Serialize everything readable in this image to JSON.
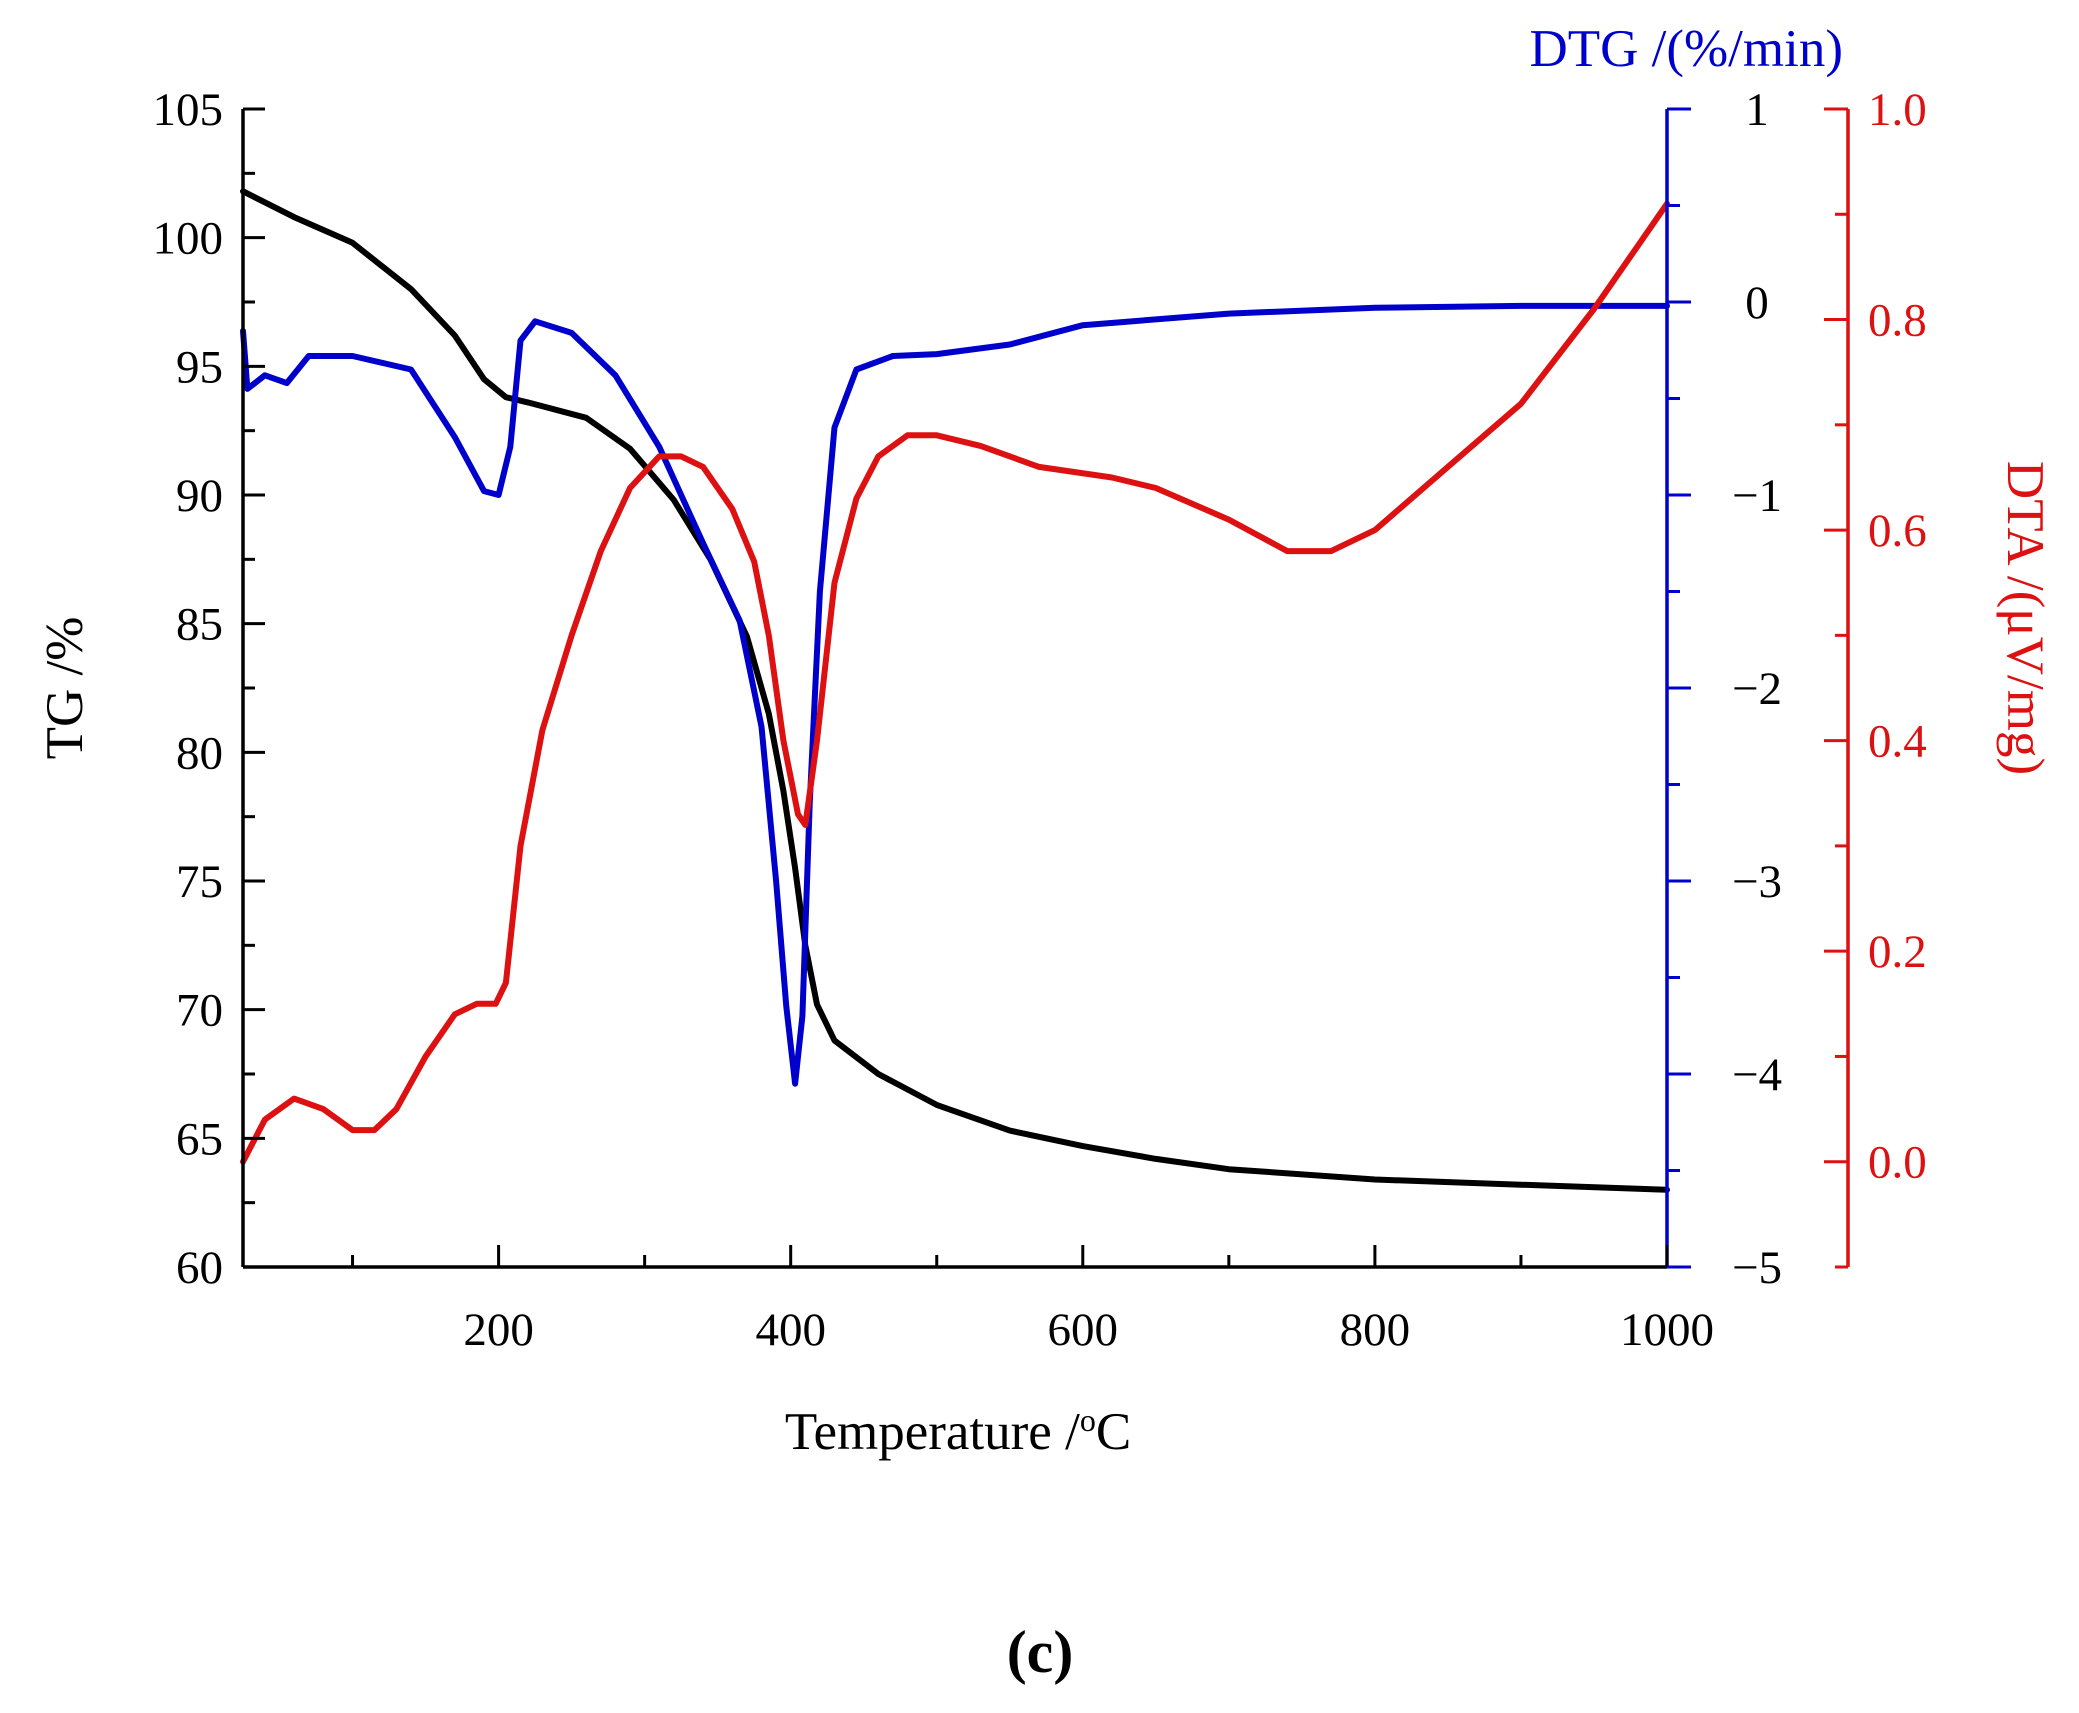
{
  "chart_data": {
    "type": "line",
    "panel_label": "(c)",
    "xlabel": "Temperature /°C",
    "xlabel_parts": {
      "text": "Temperature /",
      "sup": "o",
      "unit": "C"
    },
    "xlim": [
      25,
      1000
    ],
    "xticks": [
      200,
      400,
      600,
      800,
      1000
    ],
    "axes": {
      "tg": {
        "label": "TG /%",
        "ylim": [
          60,
          105
        ],
        "ticks": [
          60,
          65,
          70,
          75,
          80,
          85,
          90,
          95,
          100,
          105
        ],
        "color": "#000000"
      },
      "dtg": {
        "label": "DTG /(%/min)",
        "ylim": [
          -5,
          1
        ],
        "ticks": [
          1,
          0,
          -1,
          -2,
          -3,
          -4,
          -5
        ],
        "tick_labels": [
          "1",
          "0",
          "−1",
          "−2",
          "−3",
          "−4",
          "−5"
        ],
        "color": "#0000cc"
      },
      "dta": {
        "label": "DTA /(μV/mg)",
        "ylim": [
          -0.1,
          1.0
        ],
        "ticks": [
          1.0,
          0.8,
          0.6,
          0.4,
          0.2,
          0.0
        ],
        "tick_labels": [
          "1.0",
          "0.8",
          "0.6",
          "0.4",
          "0.2",
          "0.0"
        ],
        "color": "#dd1111"
      }
    },
    "series": [
      {
        "name": "TG",
        "axis": "tg",
        "color": "#000000",
        "x": [
          25,
          60,
          100,
          140,
          170,
          190,
          205,
          220,
          260,
          290,
          320,
          345,
          370,
          385,
          395,
          403,
          410,
          418,
          430,
          460,
          500,
          550,
          600,
          650,
          700,
          800,
          900,
          1000
        ],
        "y": [
          101.8,
          100.8,
          99.8,
          98.0,
          96.2,
          94.5,
          93.8,
          93.6,
          93.0,
          91.8,
          89.8,
          87.5,
          84.5,
          81.5,
          78.5,
          75.5,
          72.5,
          70.2,
          68.8,
          67.5,
          66.3,
          65.3,
          64.7,
          64.2,
          63.8,
          63.4,
          63.2,
          63.0
        ]
      },
      {
        "name": "DTG",
        "axis": "dtg",
        "color": "#0000cc",
        "x": [
          25,
          28,
          40,
          55,
          70,
          100,
          140,
          170,
          190,
          200,
          208,
          215,
          225,
          250,
          280,
          310,
          340,
          365,
          380,
          390,
          397,
          403,
          408,
          413,
          420,
          430,
          445,
          470,
          500,
          550,
          600,
          700,
          800,
          900,
          1000
        ],
        "y": [
          -0.15,
          -0.45,
          -0.38,
          -0.42,
          -0.28,
          -0.28,
          -0.35,
          -0.7,
          -0.98,
          -1.0,
          -0.75,
          -0.2,
          -0.1,
          -0.16,
          -0.38,
          -0.75,
          -1.25,
          -1.65,
          -2.2,
          -3.0,
          -3.65,
          -4.05,
          -3.7,
          -2.6,
          -1.5,
          -0.65,
          -0.35,
          -0.28,
          -0.27,
          -0.22,
          -0.12,
          -0.06,
          -0.03,
          -0.02,
          -0.02
        ]
      },
      {
        "name": "DTA",
        "axis": "dta",
        "color": "#dd1111",
        "x": [
          25,
          40,
          60,
          80,
          100,
          115,
          130,
          150,
          170,
          185,
          198,
          205,
          215,
          230,
          250,
          270,
          290,
          310,
          325,
          340,
          360,
          375,
          385,
          395,
          405,
          410,
          418,
          430,
          445,
          460,
          480,
          500,
          530,
          570,
          620,
          650,
          700,
          740,
          770,
          800,
          850,
          900,
          950,
          980,
          1000
        ],
        "y": [
          0.0,
          0.04,
          0.06,
          0.05,
          0.03,
          0.03,
          0.05,
          0.1,
          0.14,
          0.15,
          0.15,
          0.17,
          0.3,
          0.41,
          0.5,
          0.58,
          0.64,
          0.67,
          0.67,
          0.66,
          0.62,
          0.57,
          0.5,
          0.4,
          0.33,
          0.32,
          0.4,
          0.55,
          0.63,
          0.67,
          0.69,
          0.69,
          0.68,
          0.66,
          0.65,
          0.64,
          0.61,
          0.58,
          0.58,
          0.6,
          0.66,
          0.72,
          0.81,
          0.87,
          0.91
        ]
      }
    ]
  }
}
